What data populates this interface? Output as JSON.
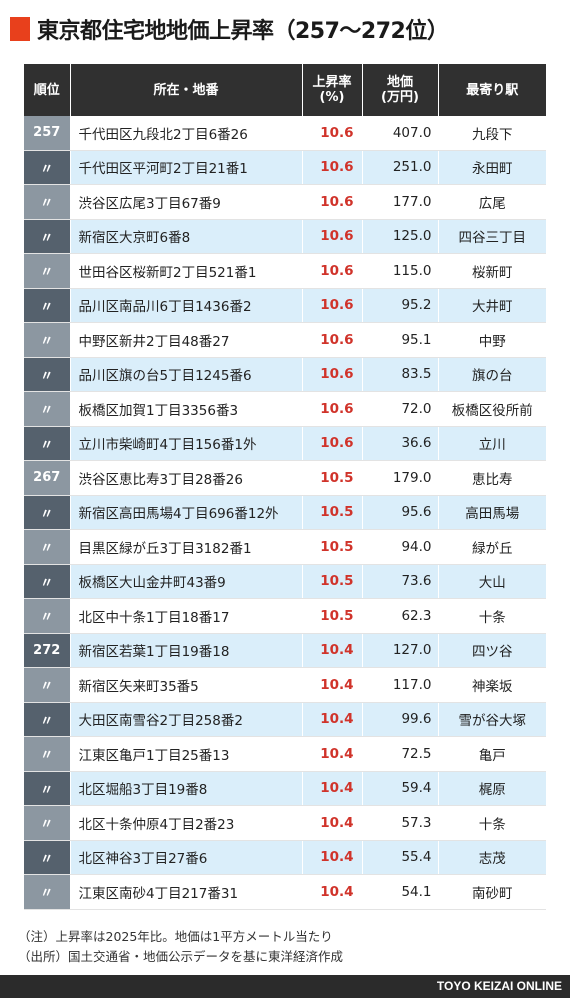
{
  "title": "東京都住宅地地価上昇率（257〜272位）",
  "columns": {
    "rank": "順位",
    "address": "所在・地番",
    "rate_line1": "上昇率",
    "rate_line2": "(%)",
    "price_line1": "地価",
    "price_line2": "(万円)",
    "station": "最寄り駅"
  },
  "rows": [
    {
      "rank": "257",
      "address": "千代田区九段北2丁目6番26",
      "rate": "10.6",
      "price": "407.0",
      "station": "九段下"
    },
    {
      "rank": "〃",
      "address": "千代田区平河町2丁目21番1",
      "rate": "10.6",
      "price": "251.0",
      "station": "永田町"
    },
    {
      "rank": "〃",
      "address": "渋谷区広尾3丁目67番9",
      "rate": "10.6",
      "price": "177.0",
      "station": "広尾"
    },
    {
      "rank": "〃",
      "address": "新宿区大京町6番8",
      "rate": "10.6",
      "price": "125.0",
      "station": "四谷三丁目"
    },
    {
      "rank": "〃",
      "address": "世田谷区桜新町2丁目521番1",
      "rate": "10.6",
      "price": "115.0",
      "station": "桜新町"
    },
    {
      "rank": "〃",
      "address": "品川区南品川6丁目1436番2",
      "rate": "10.6",
      "price": "95.2",
      "station": "大井町"
    },
    {
      "rank": "〃",
      "address": "中野区新井2丁目48番27",
      "rate": "10.6",
      "price": "95.1",
      "station": "中野"
    },
    {
      "rank": "〃",
      "address": "品川区旗の台5丁目1245番6",
      "rate": "10.6",
      "price": "83.5",
      "station": "旗の台"
    },
    {
      "rank": "〃",
      "address": "板橋区加賀1丁目3356番3",
      "rate": "10.6",
      "price": "72.0",
      "station": "板橋区役所前"
    },
    {
      "rank": "〃",
      "address": "立川市柴崎町4丁目156番1外",
      "rate": "10.6",
      "price": "36.6",
      "station": "立川"
    },
    {
      "rank": "267",
      "address": "渋谷区恵比寿3丁目28番26",
      "rate": "10.5",
      "price": "179.0",
      "station": "恵比寿"
    },
    {
      "rank": "〃",
      "address": "新宿区高田馬場4丁目696番12外",
      "rate": "10.5",
      "price": "95.6",
      "station": "高田馬場"
    },
    {
      "rank": "〃",
      "address": "目黒区緑が丘3丁目3182番1",
      "rate": "10.5",
      "price": "94.0",
      "station": "緑が丘"
    },
    {
      "rank": "〃",
      "address": "板橋区大山金井町43番9",
      "rate": "10.5",
      "price": "73.6",
      "station": "大山"
    },
    {
      "rank": "〃",
      "address": "北区中十条1丁目18番17",
      "rate": "10.5",
      "price": "62.3",
      "station": "十条"
    },
    {
      "rank": "272",
      "address": "新宿区若葉1丁目19番18",
      "rate": "10.4",
      "price": "127.0",
      "station": "四ツ谷"
    },
    {
      "rank": "〃",
      "address": "新宿区矢来町35番5",
      "rate": "10.4",
      "price": "117.0",
      "station": "神楽坂"
    },
    {
      "rank": "〃",
      "address": "大田区南雪谷2丁目258番2",
      "rate": "10.4",
      "price": "99.6",
      "station": "雪が谷大塚"
    },
    {
      "rank": "〃",
      "address": "江東区亀戸1丁目25番13",
      "rate": "10.4",
      "price": "72.5",
      "station": "亀戸"
    },
    {
      "rank": "〃",
      "address": "北区堀船3丁目19番8",
      "rate": "10.4",
      "price": "59.4",
      "station": "梶原"
    },
    {
      "rank": "〃",
      "address": "北区十条仲原4丁目2番23",
      "rate": "10.4",
      "price": "57.3",
      "station": "十条"
    },
    {
      "rank": "〃",
      "address": "北区神谷3丁目27番6",
      "rate": "10.4",
      "price": "55.4",
      "station": "志茂"
    },
    {
      "rank": "〃",
      "address": "江東区南砂4丁目217番31",
      "rate": "10.4",
      "price": "54.1",
      "station": "南砂町"
    }
  ],
  "notes": {
    "note1": "（注）上昇率は2025年比。地価は1平方メートル当たり",
    "note2": "（出所）国土交通省・地価公示データを基に東洋経済作成"
  },
  "footer": "TOYO KEIZAI ONLINE",
  "colors": {
    "accent": "#e8401c",
    "header_bg": "#303030",
    "rate_text": "#d0332a",
    "row_alt": "#daeefa",
    "rank_light": "#8c97a1",
    "rank_dark": "#55616d"
  }
}
